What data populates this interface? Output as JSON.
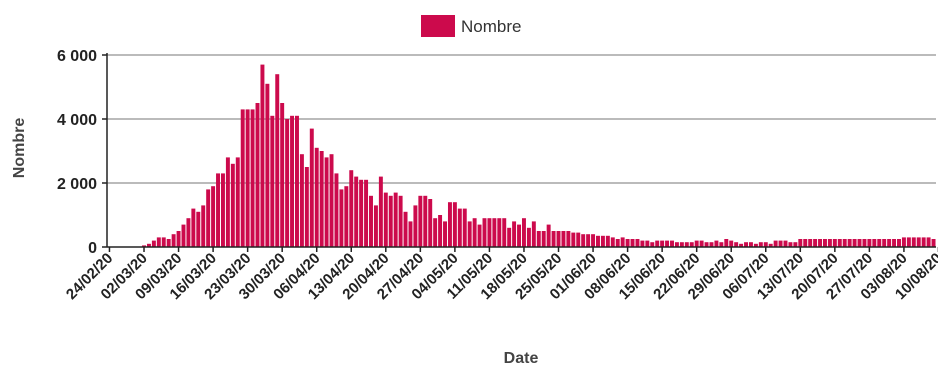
{
  "chart_data": {
    "type": "bar",
    "legend": {
      "label": "Nombre",
      "color": "#cc0a4c",
      "position": "top-center"
    },
    "xlabel": "Date",
    "ylabel": "Nombre",
    "ylim": [
      0,
      6000
    ],
    "y_ticks": [
      0,
      2000,
      4000,
      6000
    ],
    "y_tick_labels": [
      "0",
      "2 000",
      "4 000",
      "6 000"
    ],
    "grid": true,
    "start_date": "2020-02-24",
    "x_tick_labels": [
      "24/02/20",
      "02/03/20",
      "09/03/20",
      "16/03/20",
      "23/03/20",
      "30/03/20",
      "06/04/20",
      "13/04/20",
      "20/04/20",
      "27/04/20",
      "04/05/20",
      "11/05/20",
      "18/05/20",
      "25/05/20",
      "01/06/20",
      "08/06/20",
      "15/06/20",
      "22/06/20",
      "29/06/20",
      "06/07/20",
      "13/07/20",
      "20/07/20",
      "27/07/20",
      "03/08/20",
      "10/08/20"
    ],
    "series": [
      {
        "name": "Nombre",
        "color": "#cc0a4c",
        "values": [
          10,
          10,
          10,
          10,
          10,
          10,
          10,
          50,
          100,
          200,
          300,
          300,
          250,
          400,
          500,
          700,
          900,
          1200,
          1100,
          1300,
          1800,
          1900,
          2300,
          2300,
          2800,
          2600,
          2800,
          4300,
          4300,
          4300,
          4500,
          5700,
          5100,
          4100,
          5400,
          4500,
          4000,
          4100,
          4100,
          2900,
          2500,
          3700,
          3100,
          3000,
          2800,
          2900,
          2300,
          1800,
          1900,
          2400,
          2200,
          2100,
          2100,
          1600,
          1300,
          2200,
          1700,
          1600,
          1700,
          1600,
          1100,
          800,
          1300,
          1600,
          1600,
          1500,
          900,
          1000,
          800,
          1400,
          1400,
          1200,
          1200,
          800,
          900,
          700,
          900,
          900,
          900,
          900,
          900,
          600,
          800,
          700,
          900,
          600,
          800,
          500,
          500,
          700,
          500,
          500,
          500,
          500,
          450,
          450,
          400,
          400,
          400,
          350,
          350,
          350,
          300,
          250,
          300,
          250,
          250,
          250,
          200,
          200,
          150,
          200,
          200,
          200,
          200,
          150,
          150,
          150,
          150,
          200,
          200,
          150,
          150,
          200,
          150,
          250,
          200,
          150,
          100,
          150,
          150,
          100,
          150,
          150,
          100,
          200,
          200,
          200,
          150,
          150,
          250,
          250,
          250,
          250,
          250,
          250,
          250,
          250,
          250,
          250,
          250,
          250,
          250,
          250,
          250,
          250,
          250,
          250,
          250,
          250,
          250,
          300,
          300,
          300,
          300,
          300,
          300,
          250
        ]
      }
    ]
  }
}
